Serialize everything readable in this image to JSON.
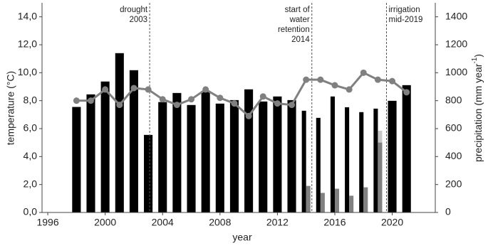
{
  "chart_data": {
    "type": "combo",
    "x": [
      1998,
      1999,
      2000,
      2001,
      2002,
      2003,
      2004,
      2005,
      2006,
      2007,
      2008,
      2009,
      2010,
      2011,
      2012,
      2013,
      2014,
      2015,
      2016,
      2017,
      2018,
      2019,
      2020,
      2021
    ],
    "series": [
      {
        "type": "bar",
        "axis": "y2",
        "color": "#000000",
        "values": [
          755,
          845,
          937,
          1140,
          1018,
          555,
          790,
          855,
          769,
          870,
          779,
          804,
          881,
          794,
          830,
          804,
          728,
          677,
          830,
          753,
          718,
          743,
          799,
          911
        ]
      },
      {
        "type": "bar",
        "axis": "y2",
        "color": "#c8c8c8",
        "values": [
          null,
          null,
          null,
          null,
          null,
          null,
          null,
          null,
          null,
          null,
          null,
          null,
          null,
          null,
          null,
          null,
          null,
          null,
          null,
          null,
          null,
          585,
          null,
          null
        ]
      },
      {
        "type": "bar",
        "axis": "y2",
        "color": "#808080",
        "values": [
          null,
          null,
          null,
          null,
          null,
          null,
          null,
          null,
          null,
          null,
          null,
          null,
          null,
          null,
          null,
          null,
          190,
          140,
          170,
          120,
          180,
          500,
          null,
          null
        ]
      },
      {
        "type": "line",
        "axis": "y",
        "color": "#808080",
        "values": [
          8.0,
          8.0,
          8.8,
          7.7,
          8.9,
          8.8,
          8.1,
          7.7,
          8.1,
          8.8,
          8.2,
          7.8,
          6.9,
          8.3,
          7.8,
          7.7,
          9.5,
          9.5,
          9.1,
          8.8,
          10.0,
          9.5,
          9.4,
          8.6
        ]
      }
    ],
    "xlim": [
      1995.6,
      2023
    ],
    "xticks": [
      1996,
      2000,
      2004,
      2008,
      2012,
      2016,
      2020
    ],
    "ylim": [
      0,
      15
    ],
    "yticks": [
      {
        "value": 0,
        "label": "0,0"
      },
      {
        "value": 2,
        "label": "2,0"
      },
      {
        "value": 4,
        "label": "4,0"
      },
      {
        "value": 6,
        "label": "6,0"
      },
      {
        "value": 8,
        "label": "8,0"
      },
      {
        "value": 10,
        "label": "10,0"
      },
      {
        "value": 12,
        "label": "12,0"
      },
      {
        "value": 14,
        "label": "14,0"
      }
    ],
    "y2lim": [
      0,
      1500
    ],
    "y2ticks": [
      0,
      200,
      400,
      600,
      800,
      1000,
      1200,
      1400
    ],
    "xlabel": "year",
    "ylabel": "temperature (°C)",
    "y2label": "precipitation (mm year",
    "y2label_sup": "-1",
    "y2label_end": ")",
    "annotations": [
      {
        "x": 2003.1,
        "side": "left",
        "lines": [
          "drought",
          "2003"
        ]
      },
      {
        "x": 2014.4,
        "side": "left",
        "lines": [
          "start of",
          "water",
          "retention",
          "2014"
        ]
      },
      {
        "x": 2019.6,
        "side": "right",
        "lines": [
          "irrigation",
          "mid-2019"
        ]
      }
    ]
  }
}
